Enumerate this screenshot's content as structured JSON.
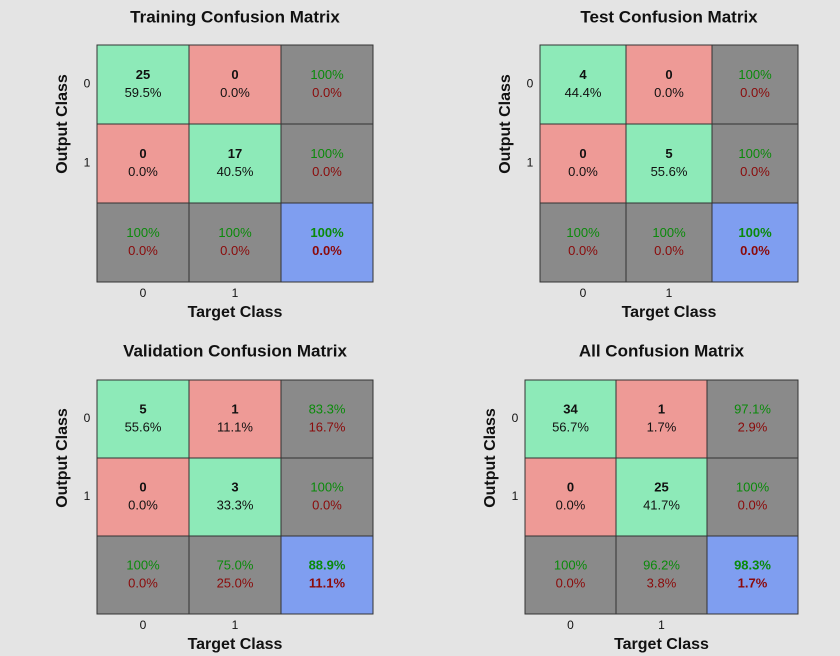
{
  "chart_data": [
    {
      "type": "confusion",
      "title": "Training Confusion Matrix",
      "xlabel": "Target Class",
      "ylabel": "Output Class",
      "row_labels": [
        "0",
        "1"
      ],
      "col_labels": [
        "0",
        "1"
      ],
      "cells": [
        [
          [
            "25",
            "59.5%"
          ],
          [
            "0",
            "0.0%"
          ],
          [
            "100%",
            "0.0%"
          ]
        ],
        [
          [
            "0",
            "0.0%"
          ],
          [
            "17",
            "40.5%"
          ],
          [
            "100%",
            "0.0%"
          ]
        ],
        [
          [
            "100%",
            "0.0%"
          ],
          [
            "100%",
            "0.0%"
          ],
          [
            "100%",
            "0.0%"
          ]
        ]
      ]
    },
    {
      "type": "confusion",
      "title": "Test Confusion Matrix",
      "xlabel": "Target Class",
      "ylabel": "Output Class",
      "row_labels": [
        "0",
        "1"
      ],
      "col_labels": [
        "0",
        "1"
      ],
      "cells": [
        [
          [
            "4",
            "44.4%"
          ],
          [
            "0",
            "0.0%"
          ],
          [
            "100%",
            "0.0%"
          ]
        ],
        [
          [
            "0",
            "0.0%"
          ],
          [
            "5",
            "55.6%"
          ],
          [
            "100%",
            "0.0%"
          ]
        ],
        [
          [
            "100%",
            "0.0%"
          ],
          [
            "100%",
            "0.0%"
          ],
          [
            "100%",
            "0.0%"
          ]
        ]
      ]
    },
    {
      "type": "confusion",
      "title": "Validation Confusion Matrix",
      "xlabel": "Target Class",
      "ylabel": "Output Class",
      "row_labels": [
        "0",
        "1"
      ],
      "col_labels": [
        "0",
        "1"
      ],
      "cells": [
        [
          [
            "5",
            "55.6%"
          ],
          [
            "1",
            "11.1%"
          ],
          [
            "83.3%",
            "16.7%"
          ]
        ],
        [
          [
            "0",
            "0.0%"
          ],
          [
            "3",
            "33.3%"
          ],
          [
            "100%",
            "0.0%"
          ]
        ],
        [
          [
            "100%",
            "0.0%"
          ],
          [
            "75.0%",
            "25.0%"
          ],
          [
            "88.9%",
            "11.1%"
          ]
        ]
      ]
    },
    {
      "type": "confusion",
      "title": "All Confusion Matrix",
      "xlabel": "Target Class",
      "ylabel": "Output Class",
      "row_labels": [
        "0",
        "1"
      ],
      "col_labels": [
        "0",
        "1"
      ],
      "cells": [
        [
          [
            "34",
            "56.7%"
          ],
          [
            "1",
            "1.7%"
          ],
          [
            "97.1%",
            "2.9%"
          ]
        ],
        [
          [
            "0",
            "0.0%"
          ],
          [
            "25",
            "41.7%"
          ],
          [
            "100%",
            "0.0%"
          ]
        ],
        [
          [
            "100%",
            "0.0%"
          ],
          [
            "96.2%",
            "3.8%"
          ],
          [
            "98.3%",
            "1.7%"
          ]
        ]
      ]
    }
  ]
}
